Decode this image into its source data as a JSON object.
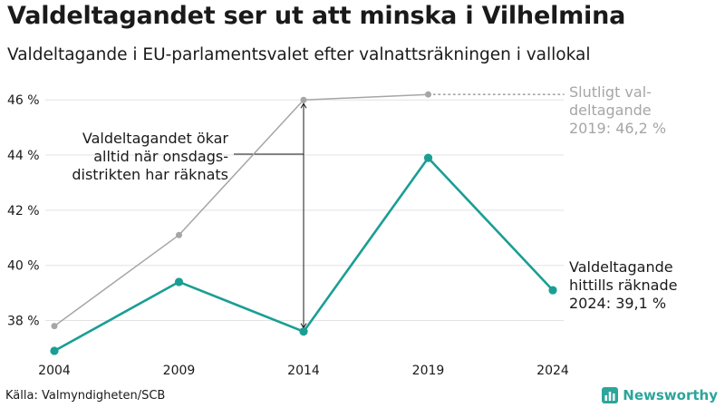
{
  "header": {
    "title": "Valdeltagandet ser ut att minska i Vilhelmina",
    "subtitle": "Valdeltagande i EU-parlamentsvalet efter valnattsräkningen i vallokal"
  },
  "chart_data": {
    "type": "line",
    "x": [
      "2004",
      "2009",
      "2014",
      "2019",
      "2024"
    ],
    "ylim": [
      36.8,
      46.6
    ],
    "yticks": [
      38,
      40,
      42,
      44,
      46
    ],
    "ytick_labels": [
      "38 %",
      "40 %",
      "42 %",
      "44 %",
      "46 %"
    ],
    "series": [
      {
        "name": "Slutligt valdeltagande",
        "color": "#a6a6a6",
        "values": [
          37.8,
          41.1,
          46.0,
          46.2,
          null
        ]
      },
      {
        "name": "Valdeltagande hittills räknade",
        "color": "#1a9e94",
        "values": [
          36.9,
          39.4,
          37.6,
          43.9,
          39.1
        ]
      }
    ],
    "annotations": {
      "final_label": [
        "Slutligt val-",
        "deltagande",
        "2019: 46,2 %"
      ],
      "counted_label": [
        "Valdeltagande",
        "hittills räknade",
        "2024: 39,1 %"
      ],
      "note_label": [
        "Valdeltagandet ökar",
        "alltid när onsdags-",
        "distrikten har räknats"
      ]
    }
  },
  "footer": {
    "source": "Källa: Valmyndigheten/SCB",
    "brand": "Newsworthy",
    "brand_icon": "bar-chart-icon",
    "brand_color": "#2ca59b"
  }
}
